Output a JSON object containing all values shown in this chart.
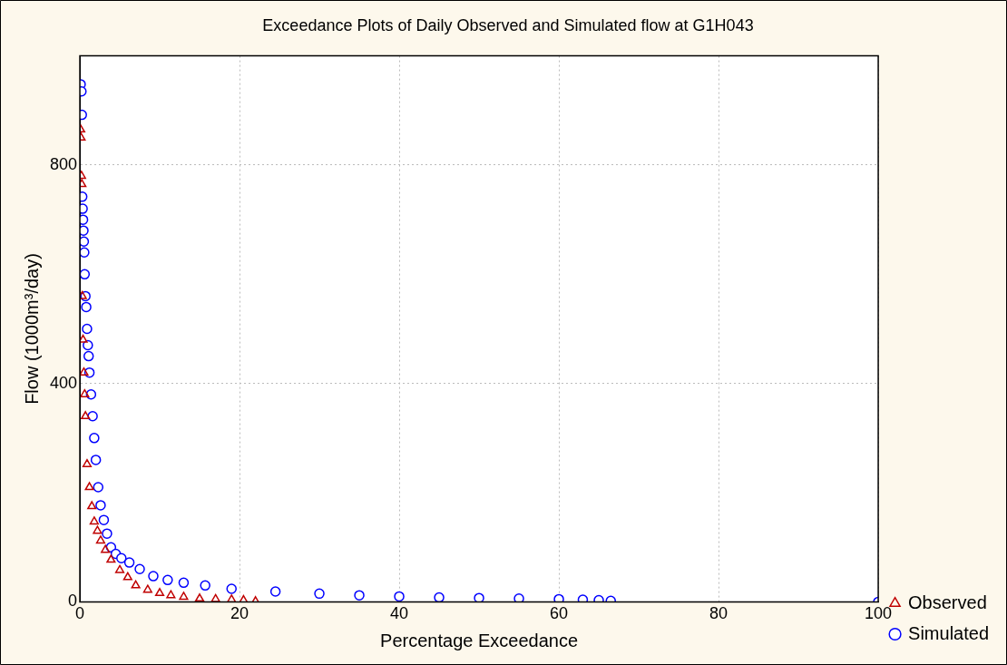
{
  "chart_data": {
    "type": "scatter",
    "title": "Exceedance Plots of Daily Observed and Simulated flow at G1H043",
    "xlabel": "Percentage Exceedance",
    "ylabel": "Flow (1000m³/day)",
    "xlim": [
      0,
      100
    ],
    "xticks": [
      0,
      20,
      40,
      60,
      80,
      100
    ],
    "ylim": [
      0,
      1000
    ],
    "yticks": [
      0,
      400,
      800
    ],
    "grid": true,
    "legend": "bottom right",
    "series": [
      {
        "name": "Observed",
        "color": "#c00000",
        "marker": "triangle",
        "x": [
          0.1,
          0.15,
          0.2,
          0.25,
          0.3,
          0.4,
          0.5,
          0.6,
          0.7,
          0.9,
          1.2,
          1.5,
          1.8,
          2.2,
          2.6,
          3.2,
          3.9,
          5,
          6,
          7,
          8.5,
          10,
          11.4,
          13,
          15,
          17,
          19,
          20.5,
          22
        ],
        "values": [
          865,
          850,
          780,
          765,
          560,
          480,
          420,
          380,
          340,
          252,
          210,
          175,
          147,
          130,
          112,
          95,
          77,
          58,
          45,
          30,
          22,
          16,
          12,
          9,
          6,
          5,
          4,
          3,
          1
        ]
      },
      {
        "name": "Simulated",
        "color": "#0000ff",
        "marker": "circle",
        "x": [
          0.1,
          0.2,
          0.25,
          0.3,
          0.35,
          0.4,
          0.45,
          0.5,
          0.55,
          0.6,
          0.7,
          0.8,
          0.9,
          1,
          1.1,
          1.2,
          1.4,
          1.6,
          1.8,
          2,
          2.3,
          2.6,
          3,
          3.4,
          3.9,
          4.5,
          5.2,
          6.2,
          7.5,
          9.2,
          11,
          13,
          15.7,
          19,
          24.5,
          30,
          35,
          40,
          45,
          50,
          55,
          60,
          63,
          65,
          66.5,
          100
        ],
        "values": [
          948,
          935,
          892,
          742,
          720,
          700,
          680,
          660,
          640,
          600,
          560,
          540,
          500,
          470,
          450,
          420,
          380,
          340,
          300,
          260,
          210,
          177,
          150,
          125,
          100,
          88,
          80,
          72,
          60,
          47,
          40,
          35,
          30,
          24,
          19,
          15,
          12,
          10,
          8,
          7,
          6,
          5,
          4,
          3,
          2,
          0
        ]
      }
    ]
  }
}
